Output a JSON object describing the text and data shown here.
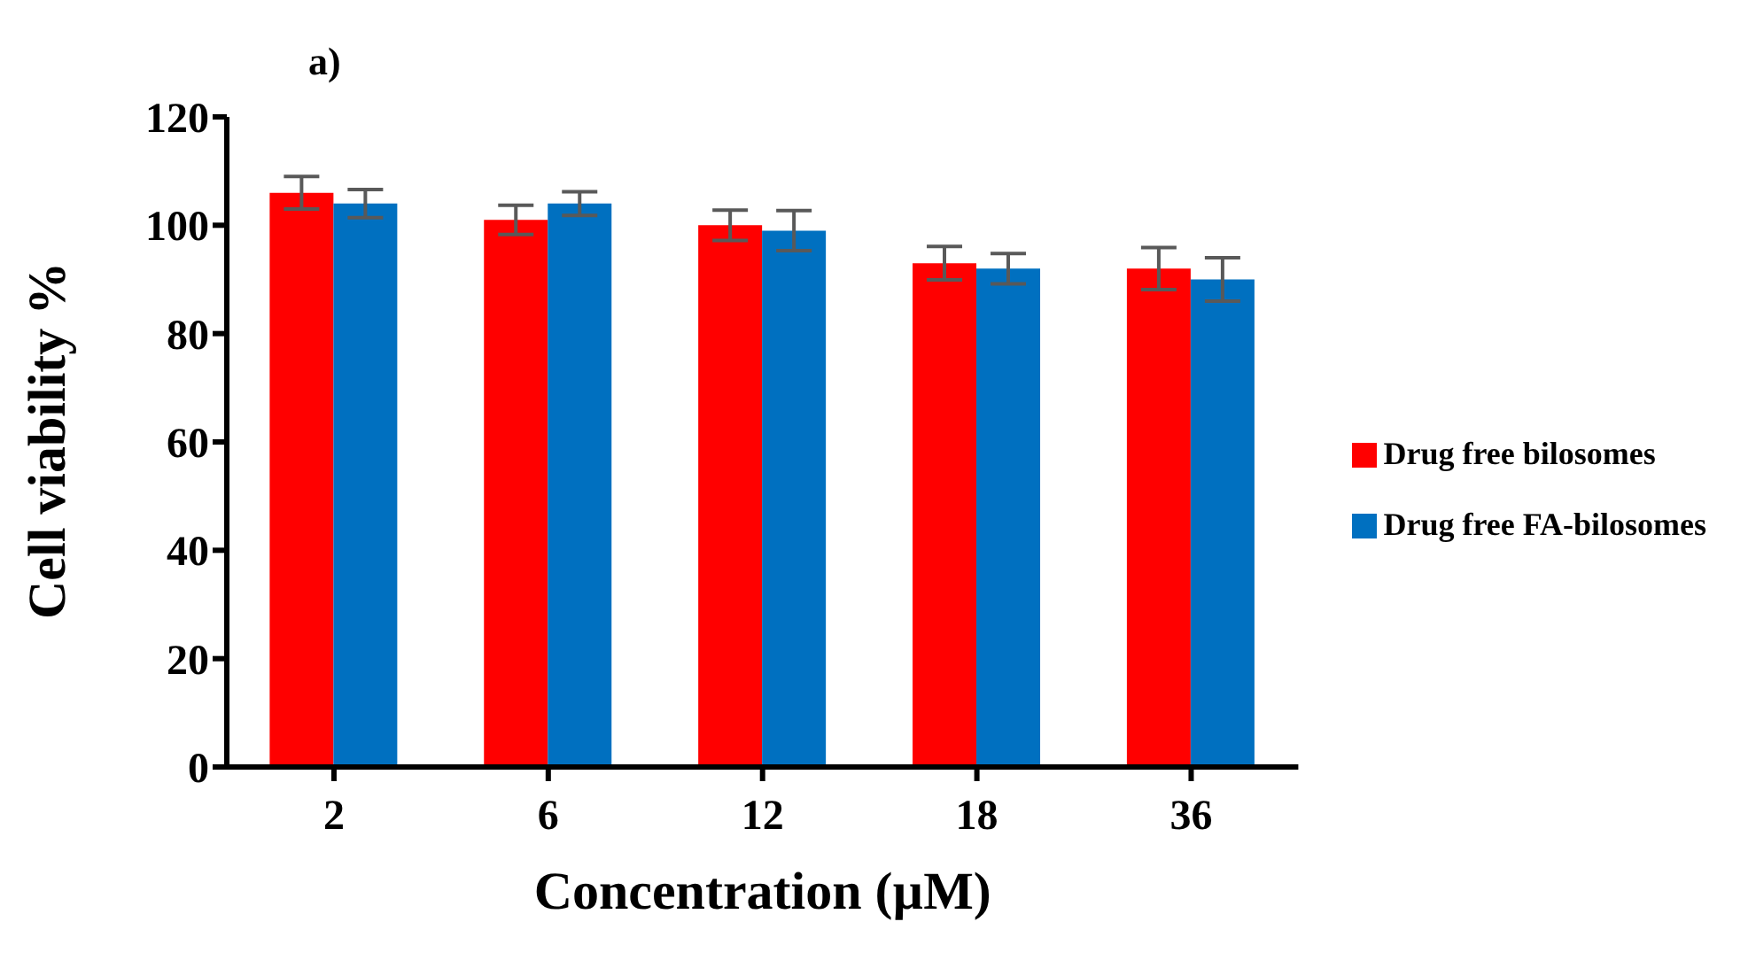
{
  "chart_data": {
    "type": "bar",
    "title": "a)",
    "xlabel": "Concentration (µM)",
    "ylabel": "Cell viability %",
    "categories": [
      "2",
      "6",
      "12",
      "18",
      "36"
    ],
    "series": [
      {
        "name": "Drug free bilosomes",
        "color": "#ff0000",
        "values": [
          106,
          101,
          100,
          93,
          92
        ],
        "errors": [
          3,
          2.7,
          2.8,
          3.1,
          3.9
        ]
      },
      {
        "name": "Drug free FA-bilosomes",
        "color": "#0070c0",
        "values": [
          104,
          104,
          99,
          92,
          90
        ],
        "errors": [
          2.6,
          2.2,
          3.7,
          2.8,
          4
        ]
      }
    ],
    "ylim": [
      0,
      120
    ],
    "yticks": [
      0,
      20,
      40,
      60,
      80,
      100,
      120
    ],
    "grid": false,
    "legend": "right"
  }
}
